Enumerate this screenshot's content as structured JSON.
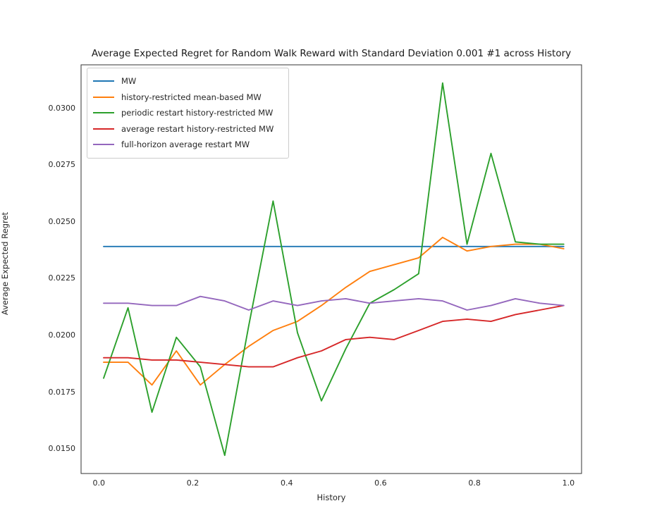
{
  "chart_data": {
    "type": "line",
    "title": "Average Expected Regret for Random Walk Reward with Standard Deviation 0.001 #1 across History",
    "xlabel": "History",
    "ylabel": "Average Expected Regret",
    "xlim": [
      -0.038,
      1.028
    ],
    "ylim": [
      0.0139,
      0.0319
    ],
    "grid": false,
    "legend_position": "upper left",
    "xticks": [
      0.0,
      0.2,
      0.4,
      0.6,
      0.8,
      1.0
    ],
    "xtick_labels": [
      "0.0",
      "0.2",
      "0.4",
      "0.6",
      "0.8",
      "1.0"
    ],
    "yticks": [
      0.015,
      0.0175,
      0.02,
      0.0225,
      0.025,
      0.0275,
      0.03
    ],
    "ytick_labels": [
      "0.0150",
      "0.0175",
      "0.0200",
      "0.0225",
      "0.0250",
      "0.0275",
      "0.0300"
    ],
    "x": [
      0.01,
      0.062,
      0.113,
      0.165,
      0.216,
      0.268,
      0.319,
      0.371,
      0.423,
      0.474,
      0.526,
      0.577,
      0.629,
      0.681,
      0.732,
      0.784,
      0.835,
      0.887,
      0.939,
      0.99
    ],
    "series": [
      {
        "name": "MW",
        "color": "#1f77b4",
        "values": [
          0.0239,
          0.0239,
          0.0239,
          0.0239,
          0.0239,
          0.0239,
          0.0239,
          0.0239,
          0.0239,
          0.0239,
          0.0239,
          0.0239,
          0.0239,
          0.0239,
          0.0239,
          0.0239,
          0.0239,
          0.0239,
          0.0239,
          0.0239
        ]
      },
      {
        "name": "history-restricted mean-based MW",
        "color": "#ff7f0e",
        "values": [
          0.0188,
          0.0188,
          0.0178,
          0.0193,
          0.0178,
          0.0187,
          0.0195,
          0.0202,
          0.0206,
          0.0213,
          0.0221,
          0.0228,
          0.0231,
          0.0234,
          0.0243,
          0.0237,
          0.0239,
          0.024,
          0.024,
          0.0238
        ]
      },
      {
        "name": "periodic restart history-restricted MW",
        "color": "#2ca02c",
        "values": [
          0.0181,
          0.0212,
          0.0166,
          0.0199,
          0.0186,
          0.0147,
          0.0204,
          0.0259,
          0.0201,
          0.0171,
          0.0194,
          0.0214,
          0.022,
          0.0227,
          0.0311,
          0.024,
          0.028,
          0.0241,
          0.024,
          0.024
        ]
      },
      {
        "name": "average restart history-restricted MW",
        "color": "#d62728",
        "values": [
          0.019,
          0.019,
          0.0189,
          0.0189,
          0.0188,
          0.0187,
          0.0186,
          0.0186,
          0.019,
          0.0193,
          0.0198,
          0.0199,
          0.0198,
          0.0202,
          0.0206,
          0.0207,
          0.0206,
          0.0209,
          0.0211,
          0.0213
        ]
      },
      {
        "name": "full-horizon average restart MW",
        "color": "#9467bd",
        "values": [
          0.0214,
          0.0214,
          0.0213,
          0.0213,
          0.0217,
          0.0215,
          0.0211,
          0.0215,
          0.0213,
          0.0215,
          0.0216,
          0.0214,
          0.0215,
          0.0216,
          0.0215,
          0.0211,
          0.0213,
          0.0216,
          0.0214,
          0.0213
        ]
      }
    ]
  }
}
